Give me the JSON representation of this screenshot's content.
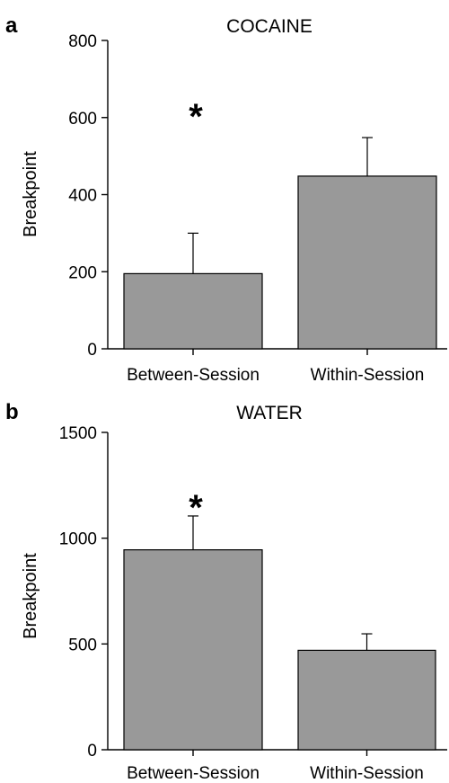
{
  "chart_data": [
    {
      "type": "bar",
      "panel": "a",
      "title": "COCAINE",
      "ylabel": "Breakpoint",
      "xlabel": "",
      "ylim": [
        0,
        800
      ],
      "yticks": [
        0,
        200,
        400,
        600,
        800
      ],
      "categories": [
        "Between-Session",
        "Within-Session"
      ],
      "values": [
        195,
        448
      ],
      "errors": [
        105,
        100
      ],
      "bar_color": "#999999",
      "significance": [
        "*",
        ""
      ]
    },
    {
      "type": "bar",
      "panel": "b",
      "title": "WATER",
      "ylabel": "Breakpoint",
      "xlabel": "",
      "ylim": [
        0,
        1500
      ],
      "yticks": [
        0,
        500,
        1000,
        1500
      ],
      "categories": [
        "Between-Session",
        "Within-Session"
      ],
      "values": [
        945,
        470
      ],
      "errors": [
        160,
        78
      ],
      "bar_color": "#999999",
      "significance": [
        "*",
        ""
      ]
    }
  ]
}
